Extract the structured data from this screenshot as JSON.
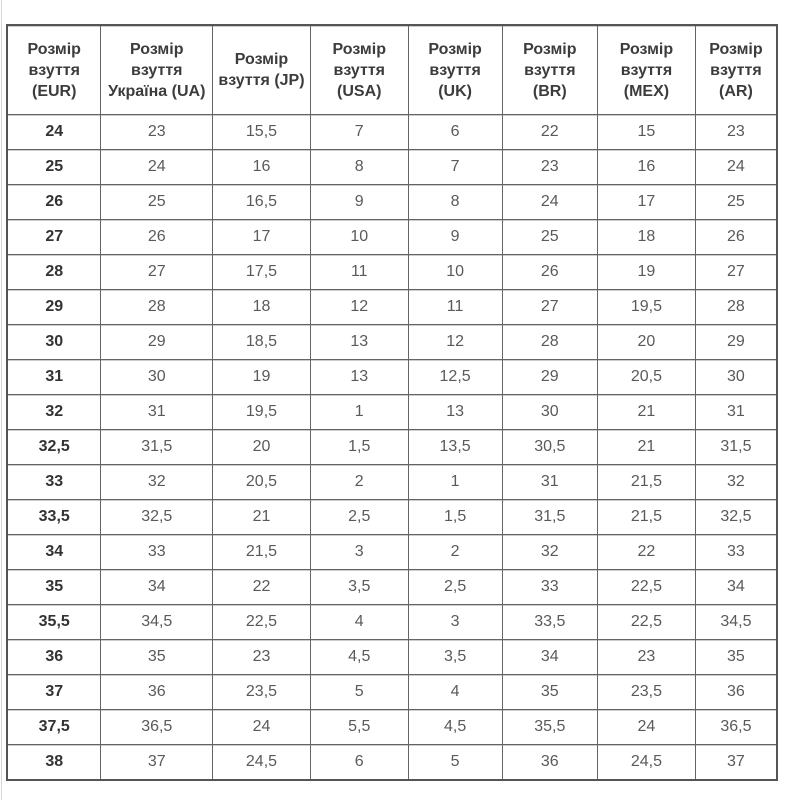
{
  "page": {
    "background": "#ffffff"
  },
  "colors": {
    "table_border": "#646464",
    "table_outer_border": "#555555",
    "groove_light_line": "#cccccc",
    "header_text": "#3c3c3c",
    "first_column_text": "#333333",
    "cell_text": "#5a5a5a"
  },
  "chart_data": {
    "type": "table",
    "title": "",
    "columns": [
      "Розмір взуття (EUR)",
      "Розмір взуття Україна (UA)",
      "Розмір взуття (JP)",
      "Розмір взуття (USA)",
      "Розмір взуття (UK)",
      "Розмір взуття (BR)",
      "Розмір взуття (MEX)",
      "Розмір взуття (AR)"
    ],
    "rows": [
      [
        "24",
        "23",
        "15,5",
        "7",
        "6",
        "22",
        "15",
        "23"
      ],
      [
        "25",
        "24",
        "16",
        "8",
        "7",
        "23",
        "16",
        "24"
      ],
      [
        "26",
        "25",
        "16,5",
        "9",
        "8",
        "24",
        "17",
        "25"
      ],
      [
        "27",
        "26",
        "17",
        "10",
        "9",
        "25",
        "18",
        "26"
      ],
      [
        "28",
        "27",
        "17,5",
        "11",
        "10",
        "26",
        "19",
        "27"
      ],
      [
        "29",
        "28",
        "18",
        "12",
        "11",
        "27",
        "19,5",
        "28"
      ],
      [
        "30",
        "29",
        "18,5",
        "13",
        "12",
        "28",
        "20",
        "29"
      ],
      [
        "31",
        "30",
        "19",
        "13",
        "12,5",
        "29",
        "20,5",
        "30"
      ],
      [
        "32",
        "31",
        "19,5",
        "1",
        "13",
        "30",
        "21",
        "31"
      ],
      [
        "32,5",
        "31,5",
        "20",
        "1,5",
        "13,5",
        "30,5",
        "21",
        "31,5"
      ],
      [
        "33",
        "32",
        "20,5",
        "2",
        "1",
        "31",
        "21,5",
        "32"
      ],
      [
        "33,5",
        "32,5",
        "21",
        "2,5",
        "1,5",
        "31,5",
        "21,5",
        "32,5"
      ],
      [
        "34",
        "33",
        "21,5",
        "3",
        "2",
        "32",
        "22",
        "33"
      ],
      [
        "35",
        "34",
        "22",
        "3,5",
        "2,5",
        "33",
        "22,5",
        "34"
      ],
      [
        "35,5",
        "34,5",
        "22,5",
        "4",
        "3",
        "33,5",
        "22,5",
        "34,5"
      ],
      [
        "36",
        "35",
        "23",
        "4,5",
        "3,5",
        "34",
        "23",
        "35"
      ],
      [
        "37",
        "36",
        "23,5",
        "5",
        "4",
        "35",
        "23,5",
        "36"
      ],
      [
        "37,5",
        "36,5",
        "24",
        "5,5",
        "4,5",
        "35,5",
        "24",
        "36,5"
      ],
      [
        "38",
        "37",
        "24,5",
        "6",
        "5",
        "36",
        "24,5",
        "37"
      ]
    ]
  }
}
